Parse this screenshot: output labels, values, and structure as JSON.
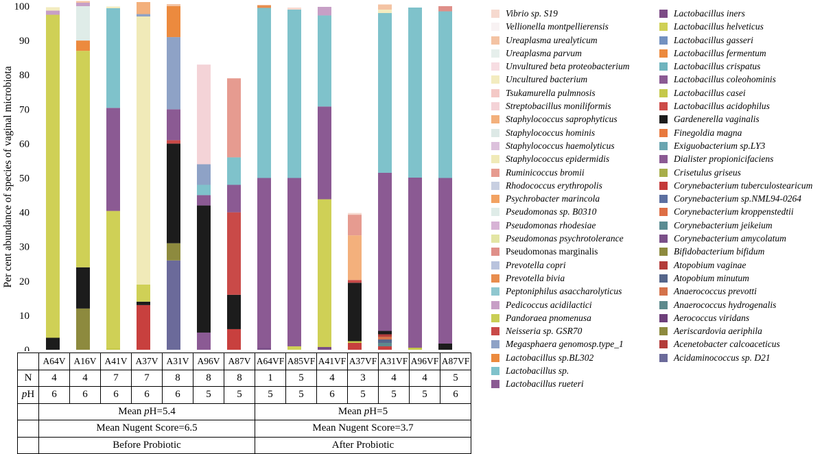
{
  "chart_data": {
    "type": "bar",
    "stacked": true,
    "ylabel": "Per cent abundance of species of vaginal microbiota",
    "ylim": [
      0,
      100
    ],
    "yticks": [
      0,
      10,
      20,
      30,
      40,
      50,
      60,
      70,
      80,
      90,
      100
    ],
    "categories": [
      "A64V",
      "A16V",
      "A41V",
      "A37V",
      "A31V",
      "A96V",
      "A87V",
      "A64VF",
      "A85VF",
      "A41VF",
      "A37VF",
      "A31VF",
      "A96VF",
      "A87VF"
    ],
    "series": [
      {
        "name": "Acidaminococcus sp. D21",
        "color": "#6b6a9a",
        "values": [
          0,
          0,
          0,
          0,
          26,
          0,
          0,
          0,
          0,
          0,
          0,
          0,
          0,
          0
        ]
      },
      {
        "name": "Aerococcus viridans",
        "color": "#8b5a94",
        "values": [
          0,
          0,
          0,
          0,
          0,
          5,
          0,
          0,
          0,
          0,
          0,
          0,
          0,
          0
        ]
      },
      {
        "name": "Acenetobacter calcoaceticus",
        "color": "#c8403e",
        "values": [
          0,
          0,
          0,
          13,
          0,
          0,
          6,
          0,
          0,
          0,
          2,
          1,
          0,
          0
        ]
      },
      {
        "name": "Gardenerella vaginalis",
        "color": "#1c1c1c",
        "values": [
          3.5,
          0,
          0,
          1,
          0,
          0,
          0,
          0,
          0,
          0,
          0,
          0,
          0,
          1.8
        ]
      },
      {
        "name": "Aeriscardovia aeriphila",
        "color": "#8d8a3e",
        "values": [
          0,
          12,
          0,
          0,
          5,
          0,
          0,
          0,
          0,
          0,
          0,
          0,
          0,
          0
        ]
      },
      {
        "name": "Lactobacillus casei",
        "color": "#c5c84a",
        "values": [
          0,
          0,
          0.4,
          0,
          0,
          0,
          0,
          0,
          0,
          0,
          0.5,
          0,
          0.6,
          0
        ]
      },
      {
        "name": "Anaerococcus hydrogenalis",
        "color": "#5d8a8d",
        "values": [
          0,
          0,
          0,
          0,
          0,
          0,
          0,
          0,
          0,
          0,
          0,
          1,
          0,
          0
        ]
      },
      {
        "name": "Atopobium minutum",
        "color": "#55658a",
        "values": [
          0,
          0,
          0,
          0,
          0,
          0,
          0,
          0,
          0,
          0,
          0,
          1,
          0,
          0
        ]
      },
      {
        "name": "Anaerococcus prevotti",
        "color": "#d4724a",
        "values": [
          0,
          0,
          0,
          0,
          0,
          0,
          0,
          0,
          0,
          0,
          0,
          0.8,
          0,
          0
        ]
      },
      {
        "name": "Atopobium vaginae",
        "color": "#b33c3a",
        "values": [
          0,
          0,
          0,
          0,
          0,
          0,
          0,
          0,
          0,
          0,
          0,
          0.7,
          0,
          0
        ]
      },
      {
        "name": "Lactobacillus helveticus",
        "color": "#cfd056",
        "values": [
          94,
          0,
          0,
          0,
          0,
          0,
          0,
          0,
          0,
          0,
          0,
          0,
          0,
          0
        ]
      },
      {
        "name": "Gardenerella vaginalis",
        "color": "#1c1c1c",
        "values": [
          0,
          12,
          0,
          0,
          29,
          37,
          10,
          0,
          0,
          0,
          17,
          1,
          0,
          0
        ]
      },
      {
        "name": "Corynebacterium amycolatum",
        "color": "#7a4f88",
        "values": [
          0,
          0,
          0,
          0,
          0,
          0,
          0,
          0.5,
          0,
          0.8,
          0,
          0,
          0,
          0
        ]
      },
      {
        "name": "Lactobacillus helveticus",
        "color": "#cfd056",
        "values": [
          0,
          63,
          40,
          5,
          0,
          0,
          0,
          0,
          1,
          43,
          0,
          0,
          0,
          0
        ]
      },
      {
        "name": "Neisseria sp. GSR70",
        "color": "#c94a48",
        "values": [
          0,
          0,
          0,
          0,
          1,
          0,
          24,
          0,
          0,
          0,
          0.8,
          0,
          0,
          0
        ]
      },
      {
        "name": "Lactobacillus rueteri",
        "color": "#8b5a93",
        "values": [
          0,
          0,
          30,
          0,
          9,
          3,
          8,
          49.5,
          49,
          27,
          0,
          46,
          49.5,
          48.2
        ]
      },
      {
        "name": "Lactobacillus sp.",
        "color": "#7fc2cb",
        "values": [
          0,
          0,
          29,
          0,
          0,
          3,
          8,
          49.5,
          49,
          26.5,
          0,
          46.5,
          49.5,
          48.5
        ]
      },
      {
        "name": "Staphylococcus epidermidis",
        "color": "#f0eab8",
        "values": [
          0,
          0,
          0,
          78,
          0,
          0,
          0,
          0,
          0,
          0,
          0,
          0,
          0,
          0
        ]
      },
      {
        "name": "Megasphaera genomosp.type_1",
        "color": "#8ea2c6",
        "values": [
          0,
          0,
          0,
          0.7,
          21,
          6,
          0,
          0,
          0,
          0,
          0,
          0,
          0,
          0
        ]
      },
      {
        "name": "Lactobacillus sp.BL302",
        "color": "#ec8a3e",
        "values": [
          0,
          3,
          0,
          0,
          9,
          0,
          0,
          0,
          0,
          0,
          0,
          0,
          0,
          0
        ]
      },
      {
        "name": "Staphylococcus saprophyticus",
        "color": "#f3b07c",
        "values": [
          0,
          0,
          0,
          3.5,
          0,
          0,
          0,
          0,
          0,
          0,
          13,
          0,
          0,
          0
        ]
      },
      {
        "name": "Ruminicoccus bromii",
        "color": "#e69b90",
        "values": [
          0,
          0,
          0,
          0,
          0,
          0,
          23,
          0,
          0,
          0,
          6,
          0,
          0,
          0
        ]
      },
      {
        "name": "Peptoniphilus asaccharolyticus",
        "color": "#8fc7cf",
        "values": [
          0,
          0,
          0,
          0,
          0,
          0,
          0,
          0,
          0,
          0,
          0,
          0,
          0,
          0
        ]
      },
      {
        "name": "Pseudomonas sp. B0310",
        "color": "#dfece8",
        "values": [
          0,
          10,
          0,
          0,
          0,
          0,
          0,
          0,
          0,
          0,
          0,
          0,
          0,
          0
        ]
      },
      {
        "name": "Streptobacillus moniliformis",
        "color": "#f4d3d7",
        "values": [
          0,
          0,
          0,
          0,
          0,
          29,
          0,
          0,
          0,
          0,
          0,
          0,
          0,
          0
        ]
      },
      {
        "name": "Pedicoccus acidilactici",
        "color": "#c79fc6",
        "values": [
          1.2,
          1,
          0,
          0,
          0,
          0,
          0,
          0,
          0,
          2.5,
          0,
          0,
          0,
          0
        ]
      },
      {
        "name": "Uncultured bacterium",
        "color": "#f3ecc0",
        "values": [
          1,
          0,
          0.5,
          0,
          0,
          0,
          0,
          0,
          0,
          0,
          0,
          1,
          0,
          0
        ]
      },
      {
        "name": "Ureaplasma urealyticum",
        "color": "#f4c3a3",
        "values": [
          0,
          0.5,
          0,
          0,
          0.6,
          0,
          0,
          0,
          0,
          0,
          0,
          1.5,
          0,
          0
        ]
      },
      {
        "name": "Prevotella bivia",
        "color": "#e88d4e",
        "values": [
          0,
          0,
          0,
          0,
          0,
          0,
          0,
          0.8,
          0,
          0,
          0,
          0,
          0,
          0
        ]
      },
      {
        "name": "Pseudomonas marginalis",
        "color": "#df8f89",
        "values": [
          0,
          0,
          0,
          0,
          0,
          0,
          0,
          0,
          0,
          0,
          0,
          0,
          0,
          1.5
        ]
      },
      {
        "name": "Vibrio sp. S19",
        "color": "#f6d9cf",
        "values": [
          0,
          0,
          0,
          0,
          0,
          0,
          0,
          0,
          0.6,
          0,
          0.5,
          0,
          0,
          0
        ]
      }
    ],
    "legend_left": [
      {
        "text": "Vibrio sp. S19",
        "color": "#f6d9cf",
        "italic": true
      },
      {
        "text": "Vellionella montpellierensis",
        "color": "#f8f2f3",
        "italic": true
      },
      {
        "text": "Ureaplasma urealyticum",
        "color": "#f4c3a3",
        "italic": true
      },
      {
        "text": "Ureaplasma parvum",
        "color": "#e6efec",
        "italic": true
      },
      {
        "text": "Unvultured beta proteobacterium",
        "color": "#f7dde2",
        "italic": true
      },
      {
        "text": "Uncultured bacterium",
        "color": "#f3ecc0",
        "italic": true
      },
      {
        "text": "Tsukamurella pulmnosis",
        "color": "#f4c9c6",
        "italic": true
      },
      {
        "text": "Streptobacillus moniliformis",
        "color": "#f4d3d7",
        "italic": true
      },
      {
        "text": "Staphylococcus saprophyticus",
        "color": "#f3b07c",
        "italic": true
      },
      {
        "text": "Staphylococcus hominis",
        "color": "#dde9e6",
        "italic": true
      },
      {
        "text": "Staphylococcus haemolyticus",
        "color": "#dcc1dc",
        "italic": true
      },
      {
        "text": "Staphylococcus epidermidis",
        "color": "#f0eab8",
        "italic": true
      },
      {
        "text": "Ruminicoccus bromii",
        "color": "#e69b90",
        "italic": true
      },
      {
        "text": "Rhodococcus erythropolis",
        "color": "#c8cfe1",
        "italic": true
      },
      {
        "text": "Psychrobacter marincola",
        "color": "#f2a262",
        "italic": true
      },
      {
        "text": "Pseudomonas sp. B0310",
        "color": "#dfece8",
        "italic": true
      },
      {
        "text": "Pseudomonas rhodesiae",
        "color": "#d7b3d5",
        "italic": true
      },
      {
        "text": "Pseudomonas psychrotolerance",
        "color": "#e3e5a4",
        "italic": true
      },
      {
        "text": "Pseudomonas marginalis",
        "color": "#df8f89",
        "italic": false
      },
      {
        "text": "Prevotella copri",
        "color": "#b9c3dd",
        "italic": true
      },
      {
        "text": "Prevotella bivia",
        "color": "#e88d4e",
        "italic": true
      },
      {
        "text": "Peptoniphilus asaccharolyticus",
        "color": "#8fc7cf",
        "italic": true
      },
      {
        "text": "Pedicoccus acidilactici",
        "color": "#c79fc6",
        "italic": true
      },
      {
        "text": "Pandoraea pnomenusa",
        "color": "#c9ce55",
        "italic": true
      },
      {
        "text": "Neisseria sp. GSR70",
        "color": "#c94a48",
        "italic": true
      },
      {
        "text": "Megasphaera genomosp.type_1",
        "color": "#8ea2c6",
        "italic": true
      },
      {
        "text": "Lactobacillus sp.BL302",
        "color": "#ec8a3e",
        "italic": true
      },
      {
        "text": "Lactobacillus sp.",
        "color": "#7fc2cb",
        "italic": true
      },
      {
        "text": "Lactobacillus rueteri",
        "color": "#8b5a93",
        "italic": true
      }
    ],
    "legend_right": [
      {
        "text": "Lactobacillus iners",
        "color": "#7d4b86",
        "italic": true
      },
      {
        "text": "Lactobacillus helveticus",
        "color": "#cfd056",
        "italic": true
      },
      {
        "text": "Lactobacillus gasseri",
        "color": "#7391c0",
        "italic": true
      },
      {
        "text": "Lactobacillus fermentum",
        "color": "#ec8a3e",
        "italic": true
      },
      {
        "text": "Lactobacillus crispatus",
        "color": "#6fb4be",
        "italic": true
      },
      {
        "text": "Lactobacillus coleohominis",
        "color": "#8b5a93",
        "italic": true
      },
      {
        "text": "Lactobacillus casei",
        "color": "#c5c84a",
        "italic": true
      },
      {
        "text": "Lactobacillus acidophilus",
        "color": "#cc4b48",
        "italic": true
      },
      {
        "text": "Gardenerella vaginalis",
        "color": "#1c1c1c",
        "italic": true
      },
      {
        "text": "Finegoldia magna",
        "color": "#e8793e",
        "italic": true
      },
      {
        "text": "Exiguobacterium sp.LY3",
        "color": "#6aa5b0",
        "italic": true
      },
      {
        "text": "Dialister propionicifaciens",
        "color": "#8b5a93",
        "italic": true
      },
      {
        "text": "Crisetulus griseus",
        "color": "#a8ae4a",
        "italic": true
      },
      {
        "text": "Corynebacterium tuberculostearicum",
        "color": "#c43a3a",
        "italic": true
      },
      {
        "text": "Corynebacterium sp.NML94-0264",
        "color": "#5c6fa0",
        "italic": true
      },
      {
        "text": "Corynebacterium kroppenstedtii",
        "color": "#dd6e45",
        "italic": true
      },
      {
        "text": "Corynebacterium jeikeium",
        "color": "#5a8c92",
        "italic": true
      },
      {
        "text": "Corynebacterium amycolatum",
        "color": "#7a4f88",
        "italic": true
      },
      {
        "text": "Bifidobacterium bifidum",
        "color": "#8d8a3e",
        "italic": true
      },
      {
        "text": "Atopobium vaginae",
        "color": "#b33c3a",
        "italic": true
      },
      {
        "text": "Atopobium minutum",
        "color": "#55658a",
        "italic": true
      },
      {
        "text": "Anaerococcus prevotti",
        "color": "#d4724a",
        "italic": true
      },
      {
        "text": "Anaerococcus hydrogenalis",
        "color": "#5d8a8d",
        "italic": true
      },
      {
        "text": "Aerococcus viridans",
        "color": "#6d3f7a",
        "italic": true
      },
      {
        "text": "Aeriscardovia aeriphila",
        "color": "#8d8a3e",
        "italic": true
      },
      {
        "text": "Acenetobacter calcoaceticus",
        "color": "#b33c3a",
        "italic": true
      },
      {
        "text": "Acidaminococcus sp. D21",
        "color": "#6b6a9a",
        "italic": true
      }
    ]
  },
  "table": {
    "samples": [
      "A64V",
      "A16V",
      "A41V",
      "A37V",
      "A31V",
      "A96V",
      "A87V",
      "A64VF",
      "A85VF",
      "A41VF",
      "A37VF",
      "A31VF",
      "A96VF",
      "A87VF"
    ],
    "n_label": "N",
    "n_values": [
      "4",
      "4",
      "7",
      "7",
      "8",
      "8",
      "8",
      "1",
      "5",
      "4",
      "3",
      "4",
      "4",
      "5"
    ],
    "ph_label_italic": "p",
    "ph_label_rest": "H",
    "ph_values": [
      "6",
      "6",
      "6",
      "6",
      "6",
      "5",
      "5",
      "5",
      "5",
      "6",
      "5",
      "5",
      "5",
      "6"
    ],
    "before": {
      "mean_ph_prefix": "Mean ",
      "mean_ph_italic": "p",
      "mean_ph_suffix": "H=5.4",
      "nugent": "Mean Nugent Score=6.5",
      "group": "Before Probiotic"
    },
    "after": {
      "mean_ph_prefix": "Mean ",
      "mean_ph_italic": "p",
      "mean_ph_suffix": "H=5",
      "nugent": "Mean Nugent Score=3.7",
      "group": "After Probiotic"
    }
  }
}
